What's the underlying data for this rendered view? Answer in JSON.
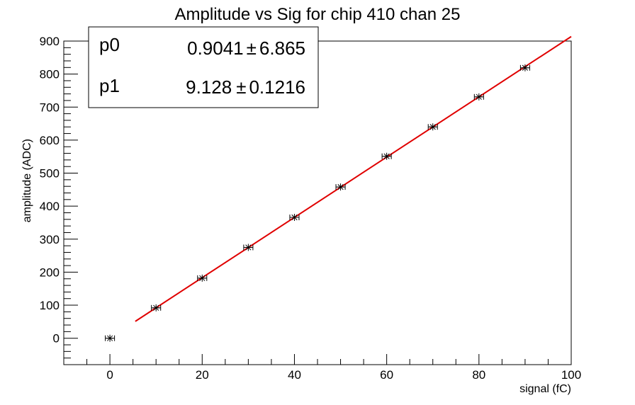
{
  "chart_data": {
    "type": "scatter",
    "title": "Amplitude vs Sig for chip 410 chan 25",
    "xlabel": "signal (fC)",
    "ylabel": "amplitude (ADC)",
    "xlim": [
      -10,
      100
    ],
    "ylim": [
      -80,
      900
    ],
    "x_ticks": [
      0,
      20,
      40,
      60,
      80,
      100
    ],
    "y_ticks": [
      0,
      100,
      200,
      300,
      400,
      500,
      600,
      700,
      800,
      900
    ],
    "grid": false,
    "series": [
      {
        "marker": "star",
        "x": [
          0,
          10,
          20,
          30,
          40,
          50,
          60,
          70,
          80,
          90
        ],
        "y": [
          0,
          92,
          182,
          275,
          366,
          458,
          551,
          640,
          731,
          819
        ],
        "x_error": [
          1,
          1,
          1,
          1,
          1,
          1,
          1,
          1,
          1,
          1
        ]
      }
    ],
    "fit": {
      "function": "p0 + p1*x",
      "x_range": [
        5.5,
        100
      ],
      "color": "#e00000",
      "p0": 0.9041,
      "p1": 9.128
    },
    "stats_box": {
      "position": "top-left",
      "rows": [
        {
          "name": "p0",
          "value": "0.9041",
          "sep": "±",
          "error": "6.865"
        },
        {
          "name": "p1",
          "value": "9.128",
          "sep": "±",
          "error": "0.1216"
        }
      ]
    }
  }
}
